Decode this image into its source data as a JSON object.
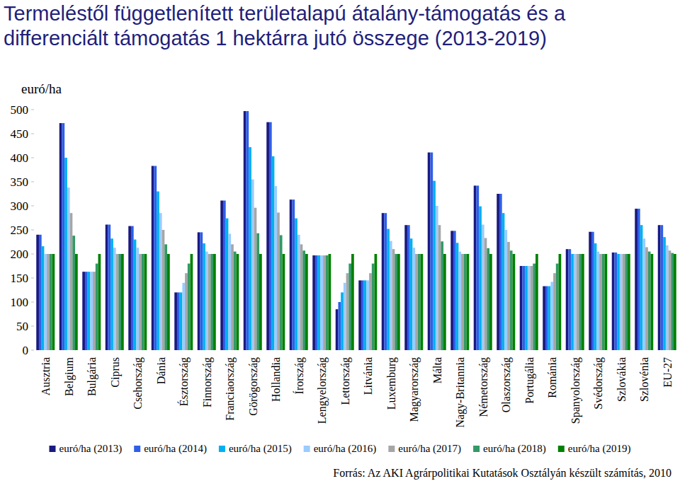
{
  "chart_data": {
    "type": "bar",
    "title": "Termeléstől függetlenített területalapú átalány-támogatás és a\ndifferenciált támogatás 1 hektárra jutó összege (2013-2019)",
    "y_label": "euró/ha",
    "source": "Forrás: Az AKI Agrárpolitikai Kutatások Osztályán készült számítás, 2010",
    "categories": [
      "Ausztria",
      "Belgium",
      "Bulgária",
      "Ciprus",
      "Csehország",
      "Dánia",
      "Észtország",
      "Finnország",
      "Franciaország",
      "Görögország",
      "Hollandia",
      "Írország",
      "Lengyelország",
      "Lettország",
      "Litvánia",
      "Luxemburg",
      "Magyarország",
      "Málta",
      "Nagy-Britannia",
      "Németország",
      "Olaszország",
      "Portugália",
      "Románia",
      "Spanyolország",
      "Svédország",
      "Szlovákia",
      "Szlovénia",
      "EU-27"
    ],
    "series": [
      {
        "name": "euró/ha (2013)",
        "color": "#1a1a80",
        "values": [
          240,
          472,
          163,
          261,
          258,
          383,
          120,
          245,
          311,
          497,
          474,
          313,
          197,
          85,
          145,
          285,
          260,
          411,
          248,
          342,
          325,
          175,
          133,
          210,
          246,
          203,
          294,
          260
        ]
      },
      {
        "name": "euró/ha (2014)",
        "color": "#2f5fe8",
        "values": [
          240,
          472,
          163,
          261,
          258,
          383,
          120,
          245,
          311,
          497,
          474,
          313,
          197,
          100,
          145,
          285,
          260,
          411,
          248,
          342,
          325,
          175,
          133,
          210,
          246,
          203,
          294,
          260
        ]
      },
      {
        "name": "euró/ha (2015)",
        "color": "#00b0f0",
        "values": [
          216,
          400,
          163,
          232,
          230,
          330,
          120,
          222,
          274,
          422,
          403,
          274,
          197,
          120,
          145,
          252,
          232,
          352,
          223,
          299,
          285,
          175,
          133,
          200,
          222,
          200,
          260,
          235
        ]
      },
      {
        "name": "euró/ha (2016)",
        "color": "#99ccff",
        "values": [
          200,
          338,
          163,
          213,
          213,
          285,
          140,
          205,
          242,
          355,
          341,
          240,
          197,
          140,
          145,
          227,
          213,
          300,
          205,
          261,
          250,
          175,
          142,
          200,
          205,
          200,
          232,
          218
        ]
      },
      {
        "name": "euró/ha (2017)",
        "color": "#a6a6a6",
        "values": [
          200,
          285,
          163,
          200,
          200,
          250,
          160,
          200,
          220,
          296,
          286,
          220,
          197,
          160,
          160,
          210,
          200,
          260,
          200,
          233,
          225,
          175,
          160,
          200,
          200,
          200,
          214,
          207
        ]
      },
      {
        "name": "euró/ha (2018)",
        "color": "#339966",
        "values": [
          200,
          238,
          180,
          200,
          200,
          220,
          180,
          200,
          205,
          243,
          239,
          207,
          197,
          180,
          180,
          200,
          200,
          226,
          200,
          212,
          207,
          180,
          180,
          200,
          200,
          200,
          205,
          202
        ]
      },
      {
        "name": "euró/ha (2019)",
        "color": "#008000",
        "values": [
          200,
          200,
          200,
          200,
          200,
          200,
          200,
          200,
          200,
          200,
          200,
          200,
          200,
          200,
          200,
          200,
          200,
          200,
          200,
          200,
          200,
          200,
          200,
          200,
          200,
          200,
          200,
          200
        ]
      }
    ],
    "ylim": [
      0,
      500
    ],
    "yticks": [
      0,
      50,
      100,
      150,
      200,
      250,
      300,
      350,
      400,
      450,
      500
    ],
    "grid": false,
    "legend": "bottom"
  }
}
